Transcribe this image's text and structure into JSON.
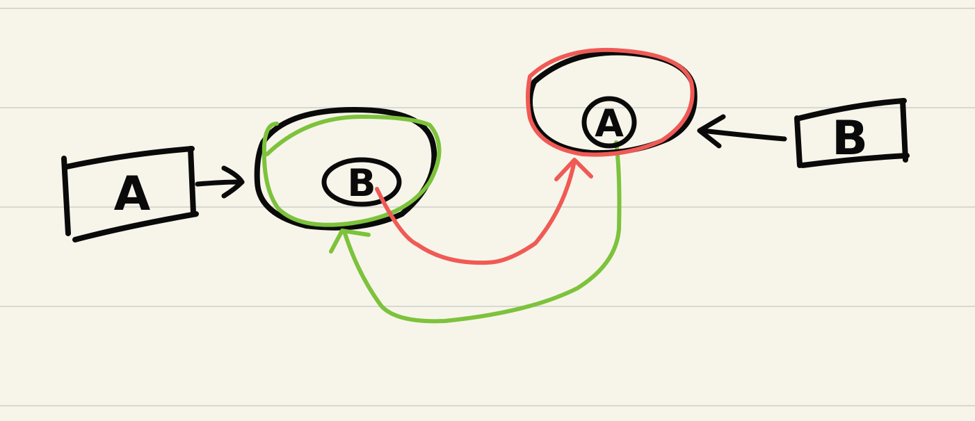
{
  "nodes": {
    "box_a": {
      "label": "A"
    },
    "box_b": {
      "label": "B"
    },
    "circle_b": {
      "label": "B"
    },
    "circle_a": {
      "label": "A"
    }
  },
  "colors": {
    "ink": "#0a0a0a",
    "red": "#f05a55",
    "green": "#7dc23c",
    "paper": "#f7f5ea",
    "rule": "#d8d8d2"
  }
}
